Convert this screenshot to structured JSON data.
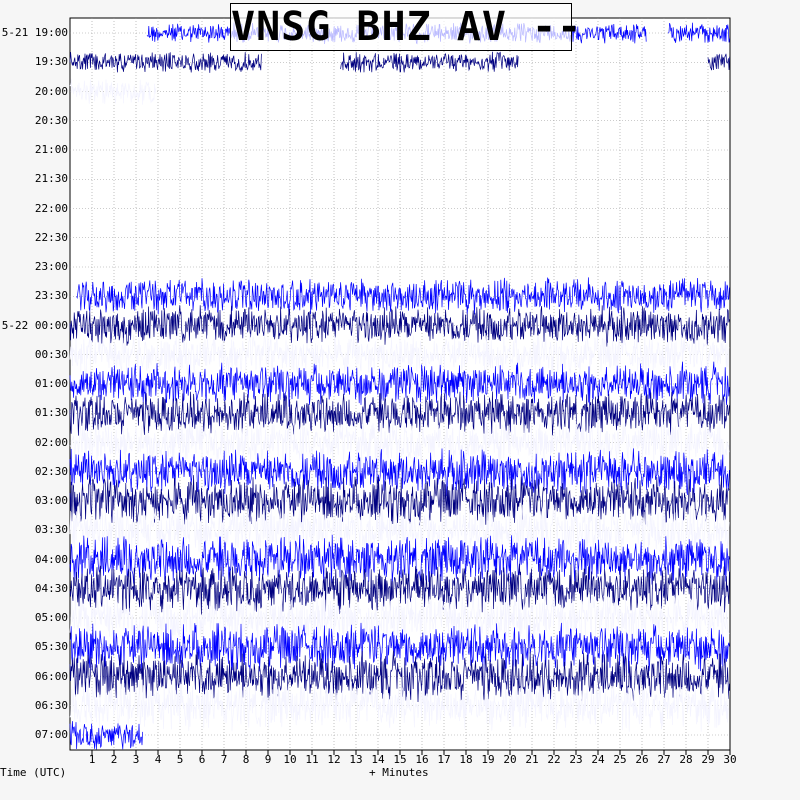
{
  "title": "VNSG BHZ AV --",
  "time_axis_label": "Time (UTC)",
  "minutes_axis_label": "+ Minutes",
  "chart_data": {
    "type": "line",
    "title": "VNSG BHZ AV --",
    "xlabel": "+ Minutes",
    "ylabel": "Time (UTC)",
    "xlim": [
      0,
      30
    ],
    "x_ticks": [
      "1",
      "2",
      "3",
      "4",
      "5",
      "6",
      "7",
      "8",
      "9",
      "10",
      "11",
      "12",
      "13",
      "14",
      "15",
      "16",
      "17",
      "18",
      "19",
      "20",
      "21",
      "22",
      "23",
      "24",
      "25",
      "26",
      "27",
      "28",
      "29",
      "30"
    ],
    "row_labels": [
      "5-21 19:00",
      "19:30",
      "20:00",
      "20:30",
      "21:00",
      "21:30",
      "22:00",
      "22:30",
      "23:00",
      "23:30",
      "5-22 00:00",
      "00:30",
      "01:00",
      "01:30",
      "02:00",
      "02:30",
      "03:00",
      "03:30",
      "04:00",
      "04:30",
      "05:00",
      "05:30",
      "06:00",
      "06:30",
      "07:00"
    ],
    "grid": true,
    "colors": [
      "#0000ff",
      "#000080",
      "#ffffff"
    ],
    "rows": [
      {
        "label": "5-21 19:00",
        "segments": [
          [
            3.5,
            26.2
          ],
          [
            27.2,
            30
          ]
        ],
        "amplitude": 0.35
      },
      {
        "label": "19:30",
        "segments": [
          [
            0,
            8.7
          ],
          [
            12.3,
            20.4
          ],
          [
            29.0,
            30
          ]
        ],
        "amplitude": 0.35
      },
      {
        "label": "20:00",
        "segments": [
          [
            0,
            3.9
          ]
        ],
        "amplitude": 0.45
      },
      {
        "label": "20:30",
        "segments": [],
        "amplitude": 0
      },
      {
        "label": "21:00",
        "segments": [],
        "amplitude": 0
      },
      {
        "label": "21:30",
        "segments": [],
        "amplitude": 0
      },
      {
        "label": "22:00",
        "segments": [],
        "amplitude": 0
      },
      {
        "label": "22:30",
        "segments": [],
        "amplitude": 0
      },
      {
        "label": "23:00",
        "segments": [],
        "amplitude": 0
      },
      {
        "label": "23:30",
        "segments": [
          [
            0.3,
            30
          ]
        ],
        "amplitude": 0.6
      },
      {
        "label": "5-22 00:00",
        "segments": [
          [
            0,
            30
          ]
        ],
        "amplitude": 0.65
      },
      {
        "label": "00:30",
        "segments": [
          [
            0,
            30
          ]
        ],
        "amplitude": 0.65
      },
      {
        "label": "01:00",
        "segments": [
          [
            0,
            30
          ]
        ],
        "amplitude": 0.7
      },
      {
        "label": "01:30",
        "segments": [
          [
            0,
            30
          ]
        ],
        "amplitude": 0.7
      },
      {
        "label": "02:00",
        "segments": [
          [
            0,
            30
          ]
        ],
        "amplitude": 0.75
      },
      {
        "label": "02:30",
        "segments": [
          [
            0,
            30
          ]
        ],
        "amplitude": 0.75
      },
      {
        "label": "03:00",
        "segments": [
          [
            0,
            30
          ]
        ],
        "amplitude": 0.8
      },
      {
        "label": "03:30",
        "segments": [
          [
            0,
            30
          ]
        ],
        "amplitude": 0.8
      },
      {
        "label": "04:00",
        "segments": [
          [
            0,
            30
          ]
        ],
        "amplitude": 0.8
      },
      {
        "label": "04:30",
        "segments": [
          [
            0,
            30
          ]
        ],
        "amplitude": 0.8
      },
      {
        "label": "05:00",
        "segments": [
          [
            0,
            30
          ]
        ],
        "amplitude": 0.8
      },
      {
        "label": "05:30",
        "segments": [
          [
            0,
            30
          ]
        ],
        "amplitude": 0.8
      },
      {
        "label": "06:00",
        "segments": [
          [
            0,
            30
          ]
        ],
        "amplitude": 0.8
      },
      {
        "label": "06:30",
        "segments": [
          [
            0,
            30
          ]
        ],
        "amplitude": 0.8
      },
      {
        "label": "07:00",
        "segments": [
          [
            0,
            3.3
          ]
        ],
        "amplitude": 0.5
      }
    ]
  }
}
